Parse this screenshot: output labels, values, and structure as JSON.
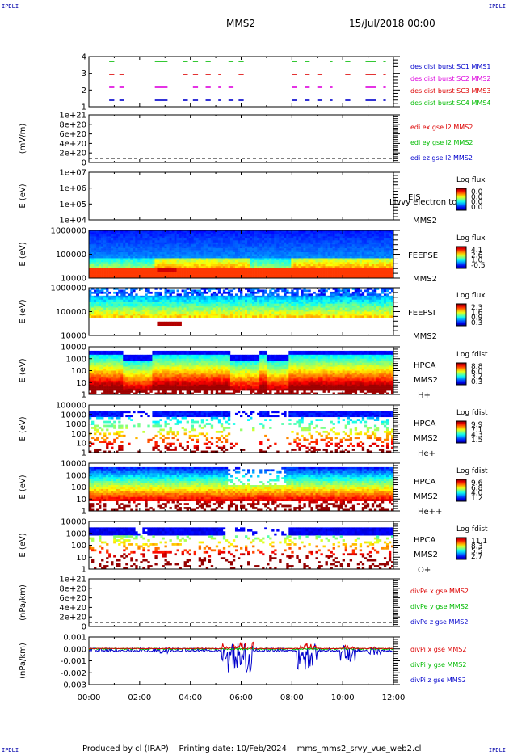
{
  "header": {
    "corner_tl": "IPDLI",
    "corner_tr": "IPDLI",
    "corner_bl": "IPDLI",
    "corner_br": "IPDLI",
    "spacecraft": "MMS2",
    "date": "15/Jul/2018 00:00"
  },
  "footer": {
    "produced": "Produced by cl (IRAP)",
    "printing": "Printing date: 10/Feb/2024",
    "file": "mms_mms2_srvy_vue_web2.cl"
  },
  "colors": {
    "c1": "#0000cc",
    "c2": "#dd00dd",
    "c3": "#dd0000",
    "c4": "#00bb00",
    "x": "#dd0000",
    "y": "#00bb00",
    "z": "#0000cc"
  },
  "chart_data": {
    "type": "spectrogram",
    "x_axis": {
      "range": [
        "00:00",
        "12:00"
      ],
      "ticks": [
        "00:00",
        "02:00",
        "04:00",
        "06:00",
        "08:00",
        "10:00",
        "12:00"
      ]
    },
    "panels": [
      {
        "id": "burst",
        "type": "timeline",
        "y_ticks": [
          "4",
          "3",
          "2",
          "1"
        ],
        "legend": [
          {
            "text": "des dist burst SC1 MMS1",
            "color": "#0000cc"
          },
          {
            "text": "des dist burst SC2 MMS2",
            "color": "#dd00dd"
          },
          {
            "text": "des dist burst SC3 MMS3",
            "color": "#dd0000"
          },
          {
            "text": "des dist burst SC4 MMS4",
            "color": "#00bb00"
          }
        ],
        "intervals_hours": [
          [
            0.8,
            1.0
          ],
          [
            1.2,
            1.4
          ],
          [
            2.6,
            3.1
          ],
          [
            3.7,
            3.9
          ],
          [
            4.1,
            4.3
          ],
          [
            4.6,
            4.8
          ],
          [
            5.1,
            5.2
          ],
          [
            5.5,
            5.7
          ],
          [
            5.9,
            6.1
          ],
          [
            8.0,
            8.2
          ],
          [
            8.5,
            8.7
          ],
          [
            9.0,
            9.2
          ],
          [
            9.5,
            9.6
          ],
          [
            10.1,
            10.3
          ],
          [
            10.9,
            11.3
          ],
          [
            11.6,
            11.7
          ]
        ]
      },
      {
        "id": "edi",
        "type": "line",
        "ylabel": "(mV/m)",
        "y_ticks": [
          "1e+21",
          "8e+20",
          "6e+20",
          "4e+20",
          "2e+20",
          "0"
        ],
        "legend": [
          {
            "text": "edi ex gse l2 MMS2",
            "color": "#dd0000"
          },
          {
            "text": "edi ey gse l2 MMS2",
            "color": "#00bb00"
          },
          {
            "text": "edi ez gse l2 MMS2",
            "color": "#0000cc"
          }
        ]
      },
      {
        "id": "eis",
        "type": "spectrogram",
        "ylabel": "E (eV)",
        "y_ticks": [
          "1e+07",
          "1e+06",
          "1e+05",
          "1e+04"
        ],
        "instrument": [
          "EIS"
        ],
        "species": "MMS2",
        "overlay": "Livvy electron to",
        "colorbar_title": "Log flux",
        "colorbar_ticks": [
          "0.0",
          "0.0",
          "0.0",
          "0.0"
        ],
        "profile": "empty"
      },
      {
        "id": "feepse",
        "type": "spectrogram",
        "ylabel": "E (eV)",
        "y_ticks": [
          "1000000",
          "100000",
          "10000"
        ],
        "instrument": [
          "FEEPSE"
        ],
        "species": "MMS2",
        "colorbar_title": "Log flux",
        "colorbar_ticks": [
          "4.1",
          "2.6",
          "1.0",
          "-0.5"
        ],
        "profile": "feepse"
      },
      {
        "id": "feepsi",
        "type": "spectrogram",
        "ylabel": "E (eV)",
        "y_ticks": [
          "1000000",
          "100000",
          "10000"
        ],
        "instrument": [
          "FEEPSI"
        ],
        "species": "MMS2",
        "colorbar_title": "Log flux",
        "colorbar_ticks": [
          "2.3",
          "1.6",
          "0.9",
          "0.3"
        ],
        "profile": "feepsi"
      },
      {
        "id": "hpca_h",
        "type": "spectrogram",
        "ylabel": "E (eV)",
        "y_ticks": [
          "10000",
          "1000",
          "100",
          "10",
          "1"
        ],
        "instrument": [
          "HPCA",
          "MMS2"
        ],
        "species": "H+",
        "colorbar_title": "Log fdist",
        "colorbar_ticks": [
          "8.8",
          "6.0",
          "3.2",
          "0.3"
        ],
        "profile": "h"
      },
      {
        "id": "hpca_he",
        "type": "spectrogram",
        "ylabel": "E (eV)",
        "y_ticks": [
          "100000",
          "10000",
          "1000",
          "100",
          "10",
          "1"
        ],
        "instrument": [
          "HPCA",
          "MMS2"
        ],
        "species": "He+",
        "colorbar_title": "Log fdist",
        "colorbar_ticks": [
          "9.9",
          "7.1",
          "4.3",
          "1.5"
        ],
        "profile": "he"
      },
      {
        "id": "hpca_hepp",
        "type": "spectrogram",
        "ylabel": "E (eV)",
        "y_ticks": [
          "10000",
          "1000",
          "100",
          "10",
          "1"
        ],
        "instrument": [
          "HPCA",
          "MMS2"
        ],
        "species": "He++",
        "colorbar_title": "Log fdist",
        "colorbar_ticks": [
          "9.6",
          "6.8",
          "4.0",
          "1.2"
        ],
        "profile": "hepp"
      },
      {
        "id": "hpca_o",
        "type": "spectrogram",
        "ylabel": "E (eV)",
        "y_ticks": [
          "10000",
          "1000",
          "100",
          "10",
          "1"
        ],
        "instrument": [
          "HPCA",
          "MMS2"
        ],
        "species": "O+",
        "colorbar_title": "Log fdist",
        "colorbar_ticks": [
          "11.1",
          "8.3",
          "5.5",
          "2.7"
        ],
        "profile": "o"
      },
      {
        "id": "divpe",
        "type": "line",
        "ylabel": "(nPa/km)",
        "y_ticks": [
          "1e+21",
          "8e+20",
          "6e+20",
          "4e+20",
          "2e+20",
          "0"
        ],
        "legend": [
          {
            "text": "divPe x gse MMS2",
            "color": "#dd0000"
          },
          {
            "text": "divPe y gse MMS2",
            "color": "#00bb00"
          },
          {
            "text": "divPe z gse MMS2",
            "color": "#0000cc"
          }
        ]
      },
      {
        "id": "divpi",
        "type": "line",
        "ylabel": "(nPa/km)",
        "y_ticks": [
          "0.001",
          "0.000",
          "-0.001",
          "-0.002",
          "-0.003"
        ],
        "legend": [
          {
            "text": "divPi x gse MMS2",
            "color": "#dd0000"
          },
          {
            "text": "divPi y gse MMS2",
            "color": "#00bb00"
          },
          {
            "text": "divPi z gse MMS2",
            "color": "#0000cc"
          }
        ]
      }
    ]
  }
}
